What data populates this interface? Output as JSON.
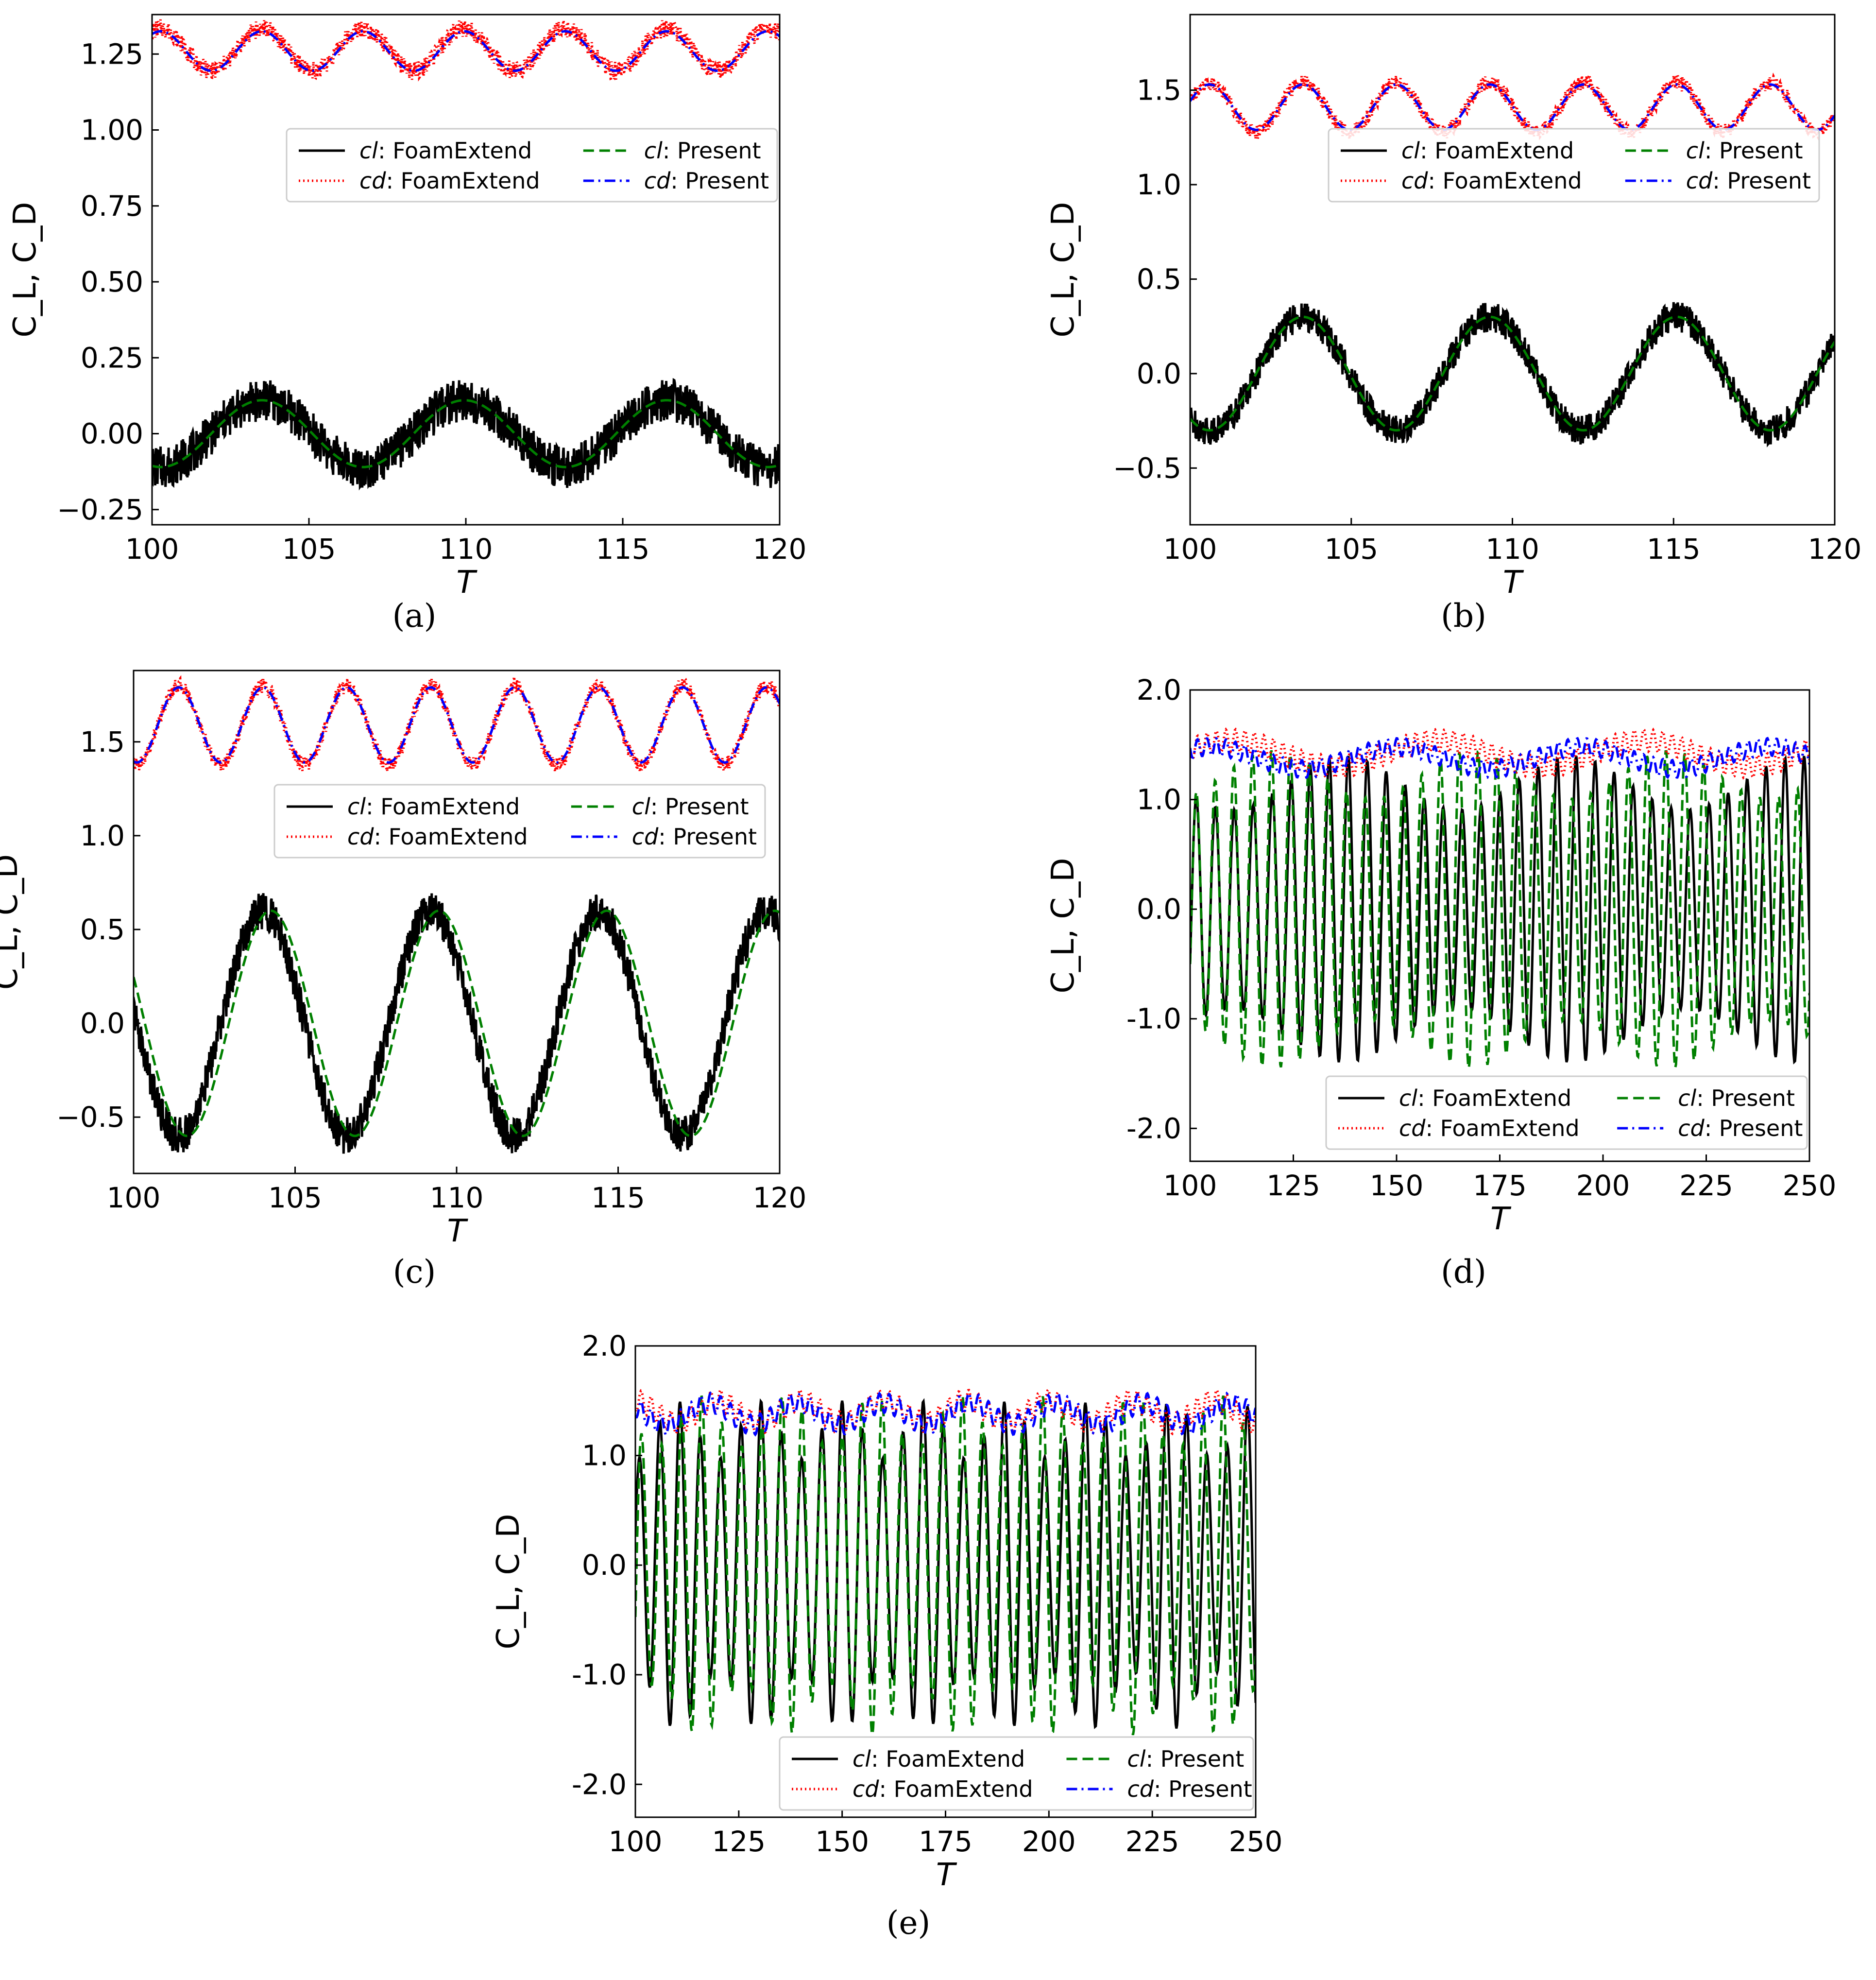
{
  "figure": {
    "captions": [
      "(a)",
      "(b)",
      "(c)",
      "(d)",
      "(e)"
    ],
    "series_styles": {
      "cl_foam": {
        "color": "#000000",
        "dash": "none",
        "stroke": 5
      },
      "cd_foam": {
        "color": "#ff0000",
        "dash": "3 6",
        "stroke": 5
      },
      "cl_present": {
        "color": "#008000",
        "dash": "22 11",
        "stroke": 5
      },
      "cd_present": {
        "color": "#0000ff",
        "dash": "22 9 4 9",
        "stroke": 5
      }
    },
    "legend_entries": [
      {
        "key": "cl_foam",
        "prefix": "cl",
        "suffix": ": FoamExtend"
      },
      {
        "key": "cd_foam",
        "prefix": "cd",
        "suffix": ": FoamExtend"
      },
      {
        "key": "cl_present",
        "prefix": "cl",
        "suffix": ": Present"
      },
      {
        "key": "cd_present",
        "prefix": "cd",
        "suffix": ": Present"
      }
    ],
    "xlabel": "T",
    "ylabel": "C_L, C_D"
  },
  "chart_data": [
    {
      "id": "a",
      "caption": "(a)",
      "type": "line",
      "xlim": [
        100,
        120
      ],
      "ylim": [
        -0.3,
        1.38
      ],
      "xticks": [
        "100",
        "105",
        "110",
        "115",
        "120"
      ],
      "xtick_values": [
        100,
        105,
        110,
        115,
        120
      ],
      "yticks": [
        "−0.25",
        "0.00",
        "0.25",
        "0.50",
        "0.75",
        "1.00",
        "1.25"
      ],
      "ytick_values": [
        -0.25,
        0,
        0.25,
        0.5,
        0.75,
        1.0,
        1.25
      ],
      "xlabel": "T",
      "ylabel": "C_L, C_D",
      "legend_position": "upper-right",
      "series": [
        {
          "name": "cl: FoamExtend",
          "key": "cl_foam",
          "mean": 0.0,
          "amp": 0.11,
          "period": 6.45,
          "phase": 103.5,
          "noise": 0.07
        },
        {
          "name": "cd: FoamExtend",
          "key": "cd_foam",
          "mean": 1.265,
          "amp": 0.07,
          "period": 3.225,
          "phase": 103.5,
          "noise": 0.03
        },
        {
          "name": "cl: Present",
          "key": "cl_present",
          "mean": 0.0,
          "amp": 0.11,
          "period": 6.45,
          "phase": 103.5,
          "noise": 0
        },
        {
          "name": "cd: Present",
          "key": "cd_present",
          "mean": 1.26,
          "amp": 0.065,
          "period": 3.225,
          "phase": 103.5,
          "noise": 0
        }
      ]
    },
    {
      "id": "b",
      "caption": "(b)",
      "type": "line",
      "xlim": [
        100,
        120
      ],
      "ylim": [
        -0.8,
        1.9
      ],
      "xticks": [
        "100",
        "105",
        "110",
        "115",
        "120"
      ],
      "xtick_values": [
        100,
        105,
        110,
        115,
        120
      ],
      "yticks": [
        "−0.5",
        "0.0",
        "0.5",
        "1.0",
        "1.5"
      ],
      "ytick_values": [
        -0.5,
        0,
        0.5,
        1.0,
        1.5
      ],
      "xlabel": "T",
      "ylabel": "C_L, C_D",
      "legend_position": "upper-right",
      "series": [
        {
          "name": "cl: FoamExtend",
          "key": "cl_foam",
          "mean": 0.0,
          "amp": 0.3,
          "period": 5.8,
          "phase": 103.5,
          "noise": 0.08
        },
        {
          "name": "cd: FoamExtend",
          "key": "cd_foam",
          "mean": 1.41,
          "amp": 0.13,
          "period": 2.9,
          "phase": 103.5,
          "noise": 0.04
        },
        {
          "name": "cl: Present",
          "key": "cl_present",
          "mean": 0.0,
          "amp": 0.3,
          "period": 5.8,
          "phase": 103.5,
          "noise": 0
        },
        {
          "name": "cd: Present",
          "key": "cd_present",
          "mean": 1.41,
          "amp": 0.12,
          "period": 2.9,
          "phase": 103.5,
          "noise": 0
        }
      ]
    },
    {
      "id": "c",
      "caption": "(c)",
      "type": "line",
      "xlim": [
        100,
        120
      ],
      "ylim": [
        -0.8,
        1.88
      ],
      "xticks": [
        "100",
        "105",
        "110",
        "115",
        "120"
      ],
      "xtick_values": [
        100,
        105,
        110,
        115,
        120
      ],
      "yticks": [
        "−0.5",
        "0.0",
        "0.5",
        "1.0",
        "1.5"
      ],
      "ytick_values": [
        -0.5,
        0,
        0.5,
        1.0,
        1.5
      ],
      "xlabel": "T",
      "ylabel": "C_L, C_D",
      "legend_position": "upper-right",
      "series": [
        {
          "name": "cl: FoamExtend",
          "key": "cl_foam",
          "mean": 0.0,
          "amp": 0.6,
          "period": 5.2,
          "phase": 104.0,
          "noise": 0.1
        },
        {
          "name": "cd: FoamExtend",
          "key": "cd_foam",
          "mean": 1.59,
          "amp": 0.21,
          "period": 2.6,
          "phase": 104.0,
          "noise": 0.04
        },
        {
          "name": "cl: Present",
          "key": "cl_present",
          "mean": 0.0,
          "amp": 0.6,
          "period": 5.2,
          "phase": 104.25,
          "noise": 0
        },
        {
          "name": "cd: Present",
          "key": "cd_present",
          "mean": 1.59,
          "amp": 0.2,
          "period": 2.6,
          "phase": 104.0,
          "noise": 0
        }
      ]
    },
    {
      "id": "d",
      "caption": "(d)",
      "type": "line",
      "xlim": [
        100,
        250
      ],
      "ylim": [
        -2.3,
        2.0
      ],
      "xticks": [
        "100",
        "125",
        "150",
        "175",
        "200",
        "225",
        "250"
      ],
      "xtick_values": [
        100,
        125,
        150,
        175,
        200,
        225,
        250
      ],
      "yticks": [
        "-2.0",
        "-1.0",
        "0.0",
        "1.0",
        "2.0"
      ],
      "ytick_values": [
        -2.0,
        -1.0,
        0,
        1.0,
        2.0
      ],
      "xlabel": "T",
      "ylabel": "C_L, C_D",
      "legend_position": "lower-right",
      "series": [
        {
          "name": "cl: FoamExtend",
          "key": "cl_foam",
          "mean": 0.0,
          "amp": 1.4,
          "period": 4.6,
          "phase": 101.5,
          "noise": 0,
          "mod": 0.35,
          "mod_period": 55
        },
        {
          "name": "cd: FoamExtend",
          "key": "cd_foam",
          "mean": 1.42,
          "amp": 0.12,
          "period": 50,
          "phase": 110,
          "noise": 0.1,
          "ripple": 2.3
        },
        {
          "name": "cl: Present",
          "key": "cl_present",
          "mean": 0.0,
          "amp": 1.45,
          "period": 4.55,
          "phase": 101.5,
          "noise": 0,
          "mod": 0.3,
          "mod_period": 48
        },
        {
          "name": "cd: Present",
          "key": "cd_present",
          "mean": 1.38,
          "amp": 0.1,
          "period": 45,
          "phase": 105,
          "noise": 0.08,
          "ripple": 2.3
        }
      ]
    },
    {
      "id": "e",
      "caption": "(e)",
      "type": "line",
      "xlim": [
        100,
        250
      ],
      "ylim": [
        -2.3,
        2.0
      ],
      "xticks": [
        "100",
        "125",
        "150",
        "175",
        "200",
        "225",
        "250"
      ],
      "xtick_values": [
        100,
        125,
        150,
        175,
        200,
        225,
        250
      ],
      "yticks": [
        "-2.0",
        "-1.0",
        "0.0",
        "1.0",
        "2.0"
      ],
      "ytick_values": [
        -2.0,
        -1.0,
        0,
        1.0,
        2.0
      ],
      "xlabel": "T",
      "ylabel": "C_L, C_D",
      "legend_position": "lower-right",
      "series": [
        {
          "name": "cl: FoamExtend",
          "key": "cl_foam",
          "mean": 0.0,
          "amp": 1.5,
          "period": 4.9,
          "phase": 101.0,
          "noise": 0,
          "mod": 0.35,
          "mod_period": 20
        },
        {
          "name": "cd: FoamExtend",
          "key": "cd_foam",
          "mean": 1.4,
          "amp": 0.1,
          "period": 20,
          "phase": 120,
          "noise": 0.1,
          "ripple": 2.4
        },
        {
          "name": "cl: Present",
          "key": "cl_present",
          "mean": 0.0,
          "amp": 1.55,
          "period": 4.85,
          "phase": 101.5,
          "noise": 0,
          "mod": 0.3,
          "mod_period": 21
        },
        {
          "name": "cd: Present",
          "key": "cd_present",
          "mean": 1.38,
          "amp": 0.1,
          "period": 21,
          "phase": 118,
          "noise": 0.09,
          "ripple": 2.4
        }
      ]
    }
  ]
}
